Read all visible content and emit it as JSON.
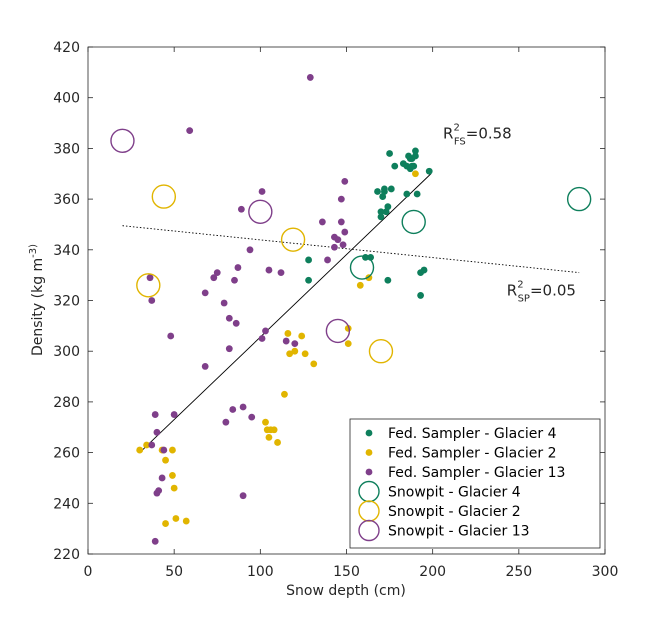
{
  "chart_data": {
    "type": "scatter",
    "xlabel": "Snow depth (cm)",
    "ylabel": "Density (kg m^-3)",
    "xlim": [
      0,
      300
    ],
    "ylim": [
      220,
      420
    ],
    "xticks": [
      0,
      50,
      100,
      150,
      200,
      250,
      300
    ],
    "yticks": [
      220,
      240,
      260,
      280,
      300,
      320,
      340,
      360,
      380,
      400,
      420
    ],
    "grid": false,
    "legend_position": "bottom-right",
    "colors": {
      "glacier4": "#0e7f5c",
      "glacier2": "#e1b500",
      "glacier13": "#7f3f8a"
    },
    "annotations": {
      "r2_fs": {
        "prefix": "R",
        "sup": "2",
        "sub": "FS",
        "value": "=0.58",
        "at": [
          206,
          384
        ]
      },
      "r2_sp": {
        "prefix": "R",
        "sup": "2",
        "sub": "SP",
        "value": "=0.05",
        "at": [
          243,
          322
        ]
      }
    },
    "fits": [
      {
        "name": "Fed. Sampler fit",
        "style": "solid",
        "x": [
          30,
          199
        ],
        "y": [
          260,
          370
        ]
      },
      {
        "name": "Snowpit fit",
        "style": "dotted",
        "x": [
          20,
          285
        ],
        "y": [
          349.5,
          331
        ]
      }
    ],
    "series": [
      {
        "name": "Fed. Sampler - Glacier 4",
        "marker": "dot",
        "color_key": "glacier4",
        "points": [
          [
            128,
            336
          ],
          [
            128,
            328
          ],
          [
            161,
            337
          ],
          [
            164,
            337
          ],
          [
            168,
            363
          ],
          [
            170,
            355
          ],
          [
            170,
            353
          ],
          [
            171,
            361
          ],
          [
            172,
            364
          ],
          [
            172,
            363
          ],
          [
            173,
            355
          ],
          [
            174,
            357
          ],
          [
            174,
            328
          ],
          [
            175,
            378
          ],
          [
            176,
            364
          ],
          [
            178,
            373
          ],
          [
            183,
            374
          ],
          [
            185,
            373
          ],
          [
            185,
            362
          ],
          [
            186,
            377
          ],
          [
            187,
            376
          ],
          [
            187,
            372
          ],
          [
            188,
            376
          ],
          [
            188,
            373
          ],
          [
            189,
            373
          ],
          [
            190,
            379
          ],
          [
            190,
            377
          ],
          [
            191,
            362
          ],
          [
            193,
            331
          ],
          [
            193,
            322
          ],
          [
            195,
            332
          ],
          [
            198,
            371
          ]
        ]
      },
      {
        "name": "Fed. Sampler - Glacier 2",
        "marker": "dot",
        "color_key": "glacier2",
        "points": [
          [
            30,
            261
          ],
          [
            34,
            263
          ],
          [
            43,
            261
          ],
          [
            45,
            257
          ],
          [
            45,
            232
          ],
          [
            49,
            251
          ],
          [
            49,
            261
          ],
          [
            50,
            246
          ],
          [
            51,
            234
          ],
          [
            57,
            233
          ],
          [
            103,
            272
          ],
          [
            104,
            269
          ],
          [
            105,
            266
          ],
          [
            106,
            269
          ],
          [
            108,
            269
          ],
          [
            110,
            264
          ],
          [
            114,
            283
          ],
          [
            116,
            307
          ],
          [
            117,
            299
          ],
          [
            120,
            300
          ],
          [
            124,
            306
          ],
          [
            126,
            299
          ],
          [
            131,
            295
          ],
          [
            151,
            309
          ],
          [
            151,
            303
          ],
          [
            158,
            326
          ],
          [
            163,
            329
          ],
          [
            190,
            370
          ]
        ]
      },
      {
        "name": "Fed. Sampler - Glacier 13",
        "marker": "dot",
        "color_key": "glacier13",
        "points": [
          [
            36,
            329
          ],
          [
            37,
            263
          ],
          [
            37,
            320
          ],
          [
            39,
            275
          ],
          [
            39,
            225
          ],
          [
            40,
            268
          ],
          [
            40,
            244
          ],
          [
            41,
            245
          ],
          [
            43,
            250
          ],
          [
            44,
            261
          ],
          [
            48,
            306
          ],
          [
            50,
            275
          ],
          [
            59,
            387
          ],
          [
            68,
            294
          ],
          [
            68,
            323
          ],
          [
            73,
            329
          ],
          [
            75,
            331
          ],
          [
            79,
            319
          ],
          [
            80,
            272
          ],
          [
            82,
            313
          ],
          [
            82,
            301
          ],
          [
            84,
            277
          ],
          [
            85,
            328
          ],
          [
            86,
            311
          ],
          [
            87,
            333
          ],
          [
            89,
            356
          ],
          [
            90,
            243
          ],
          [
            90,
            278
          ],
          [
            94,
            340
          ],
          [
            95,
            274
          ],
          [
            101,
            363
          ],
          [
            101,
            305
          ],
          [
            103,
            308
          ],
          [
            105,
            332
          ],
          [
            112,
            331
          ],
          [
            115,
            304
          ],
          [
            120,
            303
          ],
          [
            129,
            408
          ],
          [
            136,
            351
          ],
          [
            139,
            336
          ],
          [
            143,
            341
          ],
          [
            143,
            345
          ],
          [
            145,
            344
          ],
          [
            147,
            351
          ],
          [
            147,
            360
          ],
          [
            148,
            342
          ],
          [
            149,
            347
          ],
          [
            149,
            367
          ]
        ]
      },
      {
        "name": "Snowpit - Glacier 4",
        "marker": "ring",
        "color_key": "glacier4",
        "points": [
          [
            159,
            333
          ],
          [
            189,
            351
          ],
          [
            285,
            360
          ]
        ]
      },
      {
        "name": "Snowpit - Glacier 2",
        "marker": "ring",
        "color_key": "glacier2",
        "points": [
          [
            35,
            326
          ],
          [
            44,
            361
          ],
          [
            119,
            344
          ],
          [
            170,
            300
          ]
        ]
      },
      {
        "name": "Snowpit - Glacier 13",
        "marker": "ring",
        "color_key": "glacier13",
        "points": [
          [
            20,
            383
          ],
          [
            100,
            355
          ],
          [
            145,
            308
          ]
        ]
      }
    ]
  }
}
